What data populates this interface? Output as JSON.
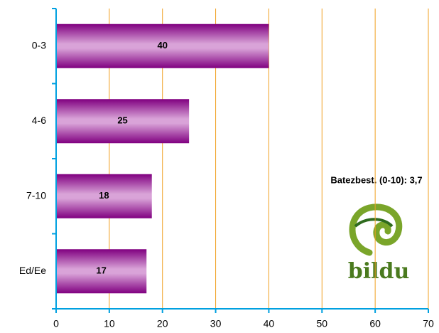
{
  "chart_data": {
    "type": "bar",
    "orientation": "horizontal",
    "categories": [
      "0-3",
      "4-6",
      "7-10",
      "Ed/Ee"
    ],
    "values": [
      40,
      25,
      18,
      17
    ],
    "color": "#800080",
    "xlim": [
      0,
      70
    ],
    "xticks": [
      0,
      10,
      20,
      30,
      40,
      50,
      60,
      70
    ],
    "grid": true,
    "grid_color": "#f0a020",
    "axis_color": "#00a0e0",
    "annotation": "Batezbest.  (0-10): 3,7",
    "logo_text": "bildu"
  }
}
